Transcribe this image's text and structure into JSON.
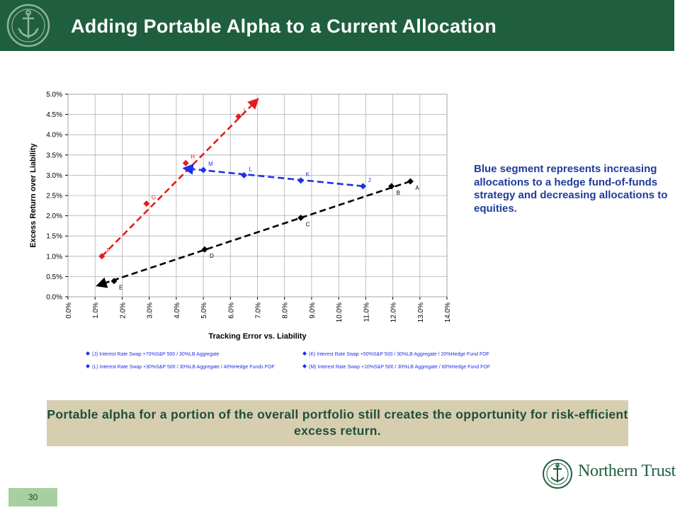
{
  "title": "Adding Portable Alpha to a Current Allocation",
  "side_note": "Blue segment represents increasing allocations to a hedge fund-of-funds strategy and decreasing allocations to equities.",
  "takeaway": "Portable alpha for a portion of the overall portfolio still creates the opportunity for risk-efficient excess return.",
  "page_number": "30",
  "brand": "Northern Trust",
  "colors": {
    "header": "#1f5f3f",
    "black_series": "#000000",
    "red_series": "#e31d1d",
    "blue_series": "#1d31e6",
    "takeaway_bg": "#d7ceb0"
  },
  "chart_data": {
    "type": "line",
    "xlabel": "Tracking Error vs. Liability",
    "ylabel": "Excess Return over Liability",
    "xlim": [
      0,
      14
    ],
    "ylim": [
      0,
      5
    ],
    "x_ticks": [
      "0.0%",
      "1.0%",
      "2.0%",
      "3.0%",
      "4.0%",
      "5.0%",
      "6.0%",
      "7.0%",
      "8.0%",
      "9.0%",
      "10.0%",
      "11.0%",
      "12.0%",
      "13.0%",
      "14.0%"
    ],
    "y_ticks": [
      "0.0%",
      "0.5%",
      "1.0%",
      "1.5%",
      "2.0%",
      "2.5%",
      "3.0%",
      "3.5%",
      "4.0%",
      "4.5%",
      "5.0%"
    ],
    "grid": true,
    "series": [
      {
        "color": "#000000",
        "dash": true,
        "arrow": {
          "from": [
            12.65,
            2.85
          ],
          "to": [
            1.1,
            0.28
          ]
        },
        "points": [
          {
            "x": 12.65,
            "y": 2.85,
            "label": "A"
          },
          {
            "x": 11.95,
            "y": 2.73,
            "label": "B"
          },
          {
            "x": 8.6,
            "y": 1.95,
            "label": "C"
          },
          {
            "x": 5.05,
            "y": 1.17,
            "label": "D"
          },
          {
            "x": 1.7,
            "y": 0.39,
            "label": "E"
          }
        ]
      },
      {
        "color": "#e31d1d",
        "dash": true,
        "arrow": {
          "from": [
            1.25,
            1.0
          ],
          "to": [
            7.0,
            4.87
          ]
        },
        "points": [
          {
            "x": 1.25,
            "y": 1.0,
            "label": "F"
          },
          {
            "x": 2.9,
            "y": 2.3,
            "label": "G"
          },
          {
            "x": 4.35,
            "y": 3.3,
            "label": "H"
          },
          {
            "x": 6.3,
            "y": 4.45,
            "label": "I"
          }
        ]
      },
      {
        "color": "#1d31e6",
        "dash": true,
        "arrow": {
          "from": [
            10.9,
            2.73
          ],
          "to": [
            4.3,
            3.17
          ]
        },
        "points": [
          {
            "x": 10.9,
            "y": 2.73,
            "label": "J"
          },
          {
            "x": 8.6,
            "y": 2.87,
            "label": "K"
          },
          {
            "x": 6.5,
            "y": 3.0,
            "label": "L"
          },
          {
            "x": 5.0,
            "y": 3.13,
            "label": "M"
          }
        ]
      }
    ],
    "legend": [
      "(J) Interest Rate Swap +70%S&P 500 / 30%LB Aggregate",
      "(K) Interest Rate Swap +50%S&P 500 / 30%LB Aggregate / 20%Hedge Fund FOF",
      "(L) Interest Rate Swap +30%S&P 500 / 30%LB Aggregate / 40%Hedge Funds FOF",
      "(M) Interest Rate Swap +10%S&P 500 / 30%LB Aggregate / 60%Hedge Fund FOF"
    ],
    "legend_placement": "bottom"
  }
}
